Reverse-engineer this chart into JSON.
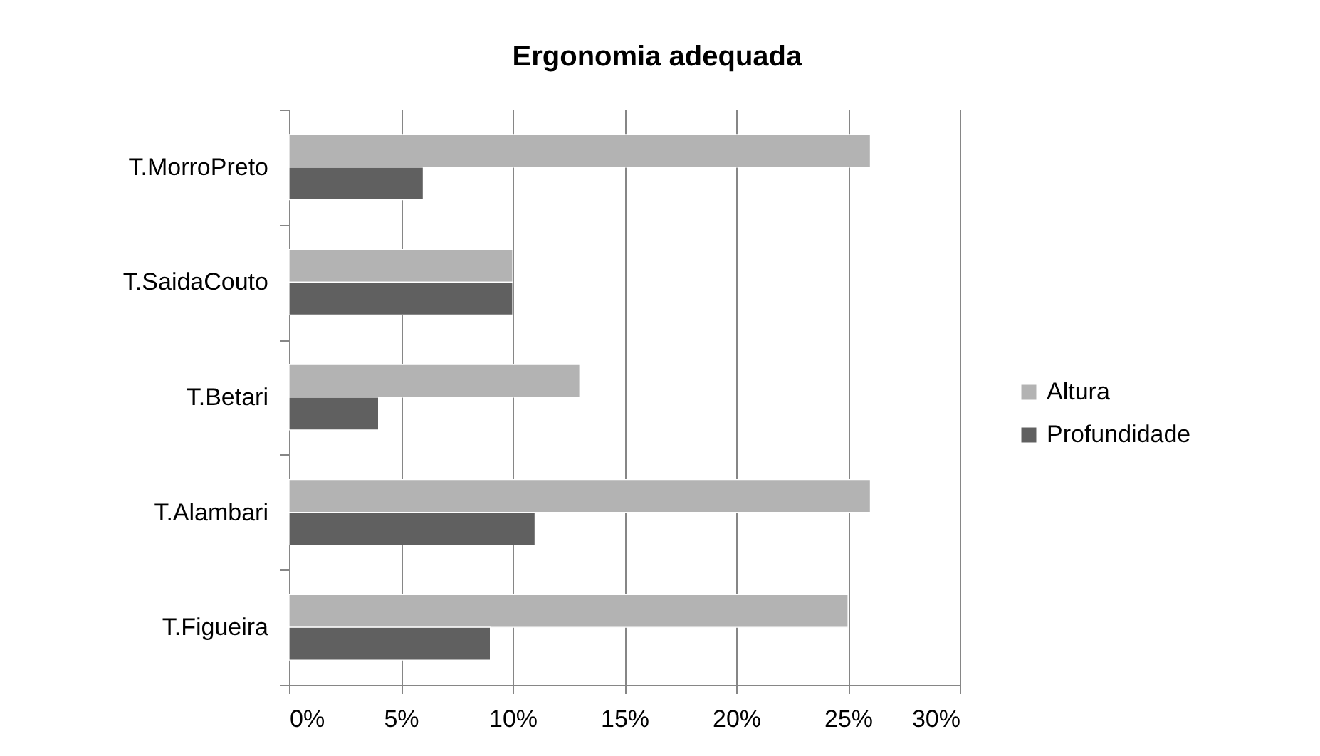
{
  "chart_data": {
    "type": "bar",
    "orientation": "horizontal",
    "title": "Ergonomia adequada",
    "categories": [
      "T.MorroPreto",
      "T.SaidaCouto",
      "T.Betari",
      "T.Alambari",
      "T.Figueira"
    ],
    "series": [
      {
        "name": "Altura",
        "color": "#b3b3b3",
        "values": [
          26,
          10,
          13,
          26,
          25
        ]
      },
      {
        "name": "Profundidade",
        "color": "#606060",
        "values": [
          6,
          10,
          4,
          11,
          9
        ]
      }
    ],
    "xlim": [
      0,
      30
    ],
    "xticks": [
      {
        "value": 0,
        "label": "0%"
      },
      {
        "value": 5,
        "label": "5%"
      },
      {
        "value": 10,
        "label": "10%"
      },
      {
        "value": 15,
        "label": "15%"
      },
      {
        "value": 20,
        "label": "20%"
      },
      {
        "value": 25,
        "label": "25%"
      },
      {
        "value": 30,
        "label": "30%"
      }
    ],
    "grid": "x",
    "legend": "right"
  }
}
